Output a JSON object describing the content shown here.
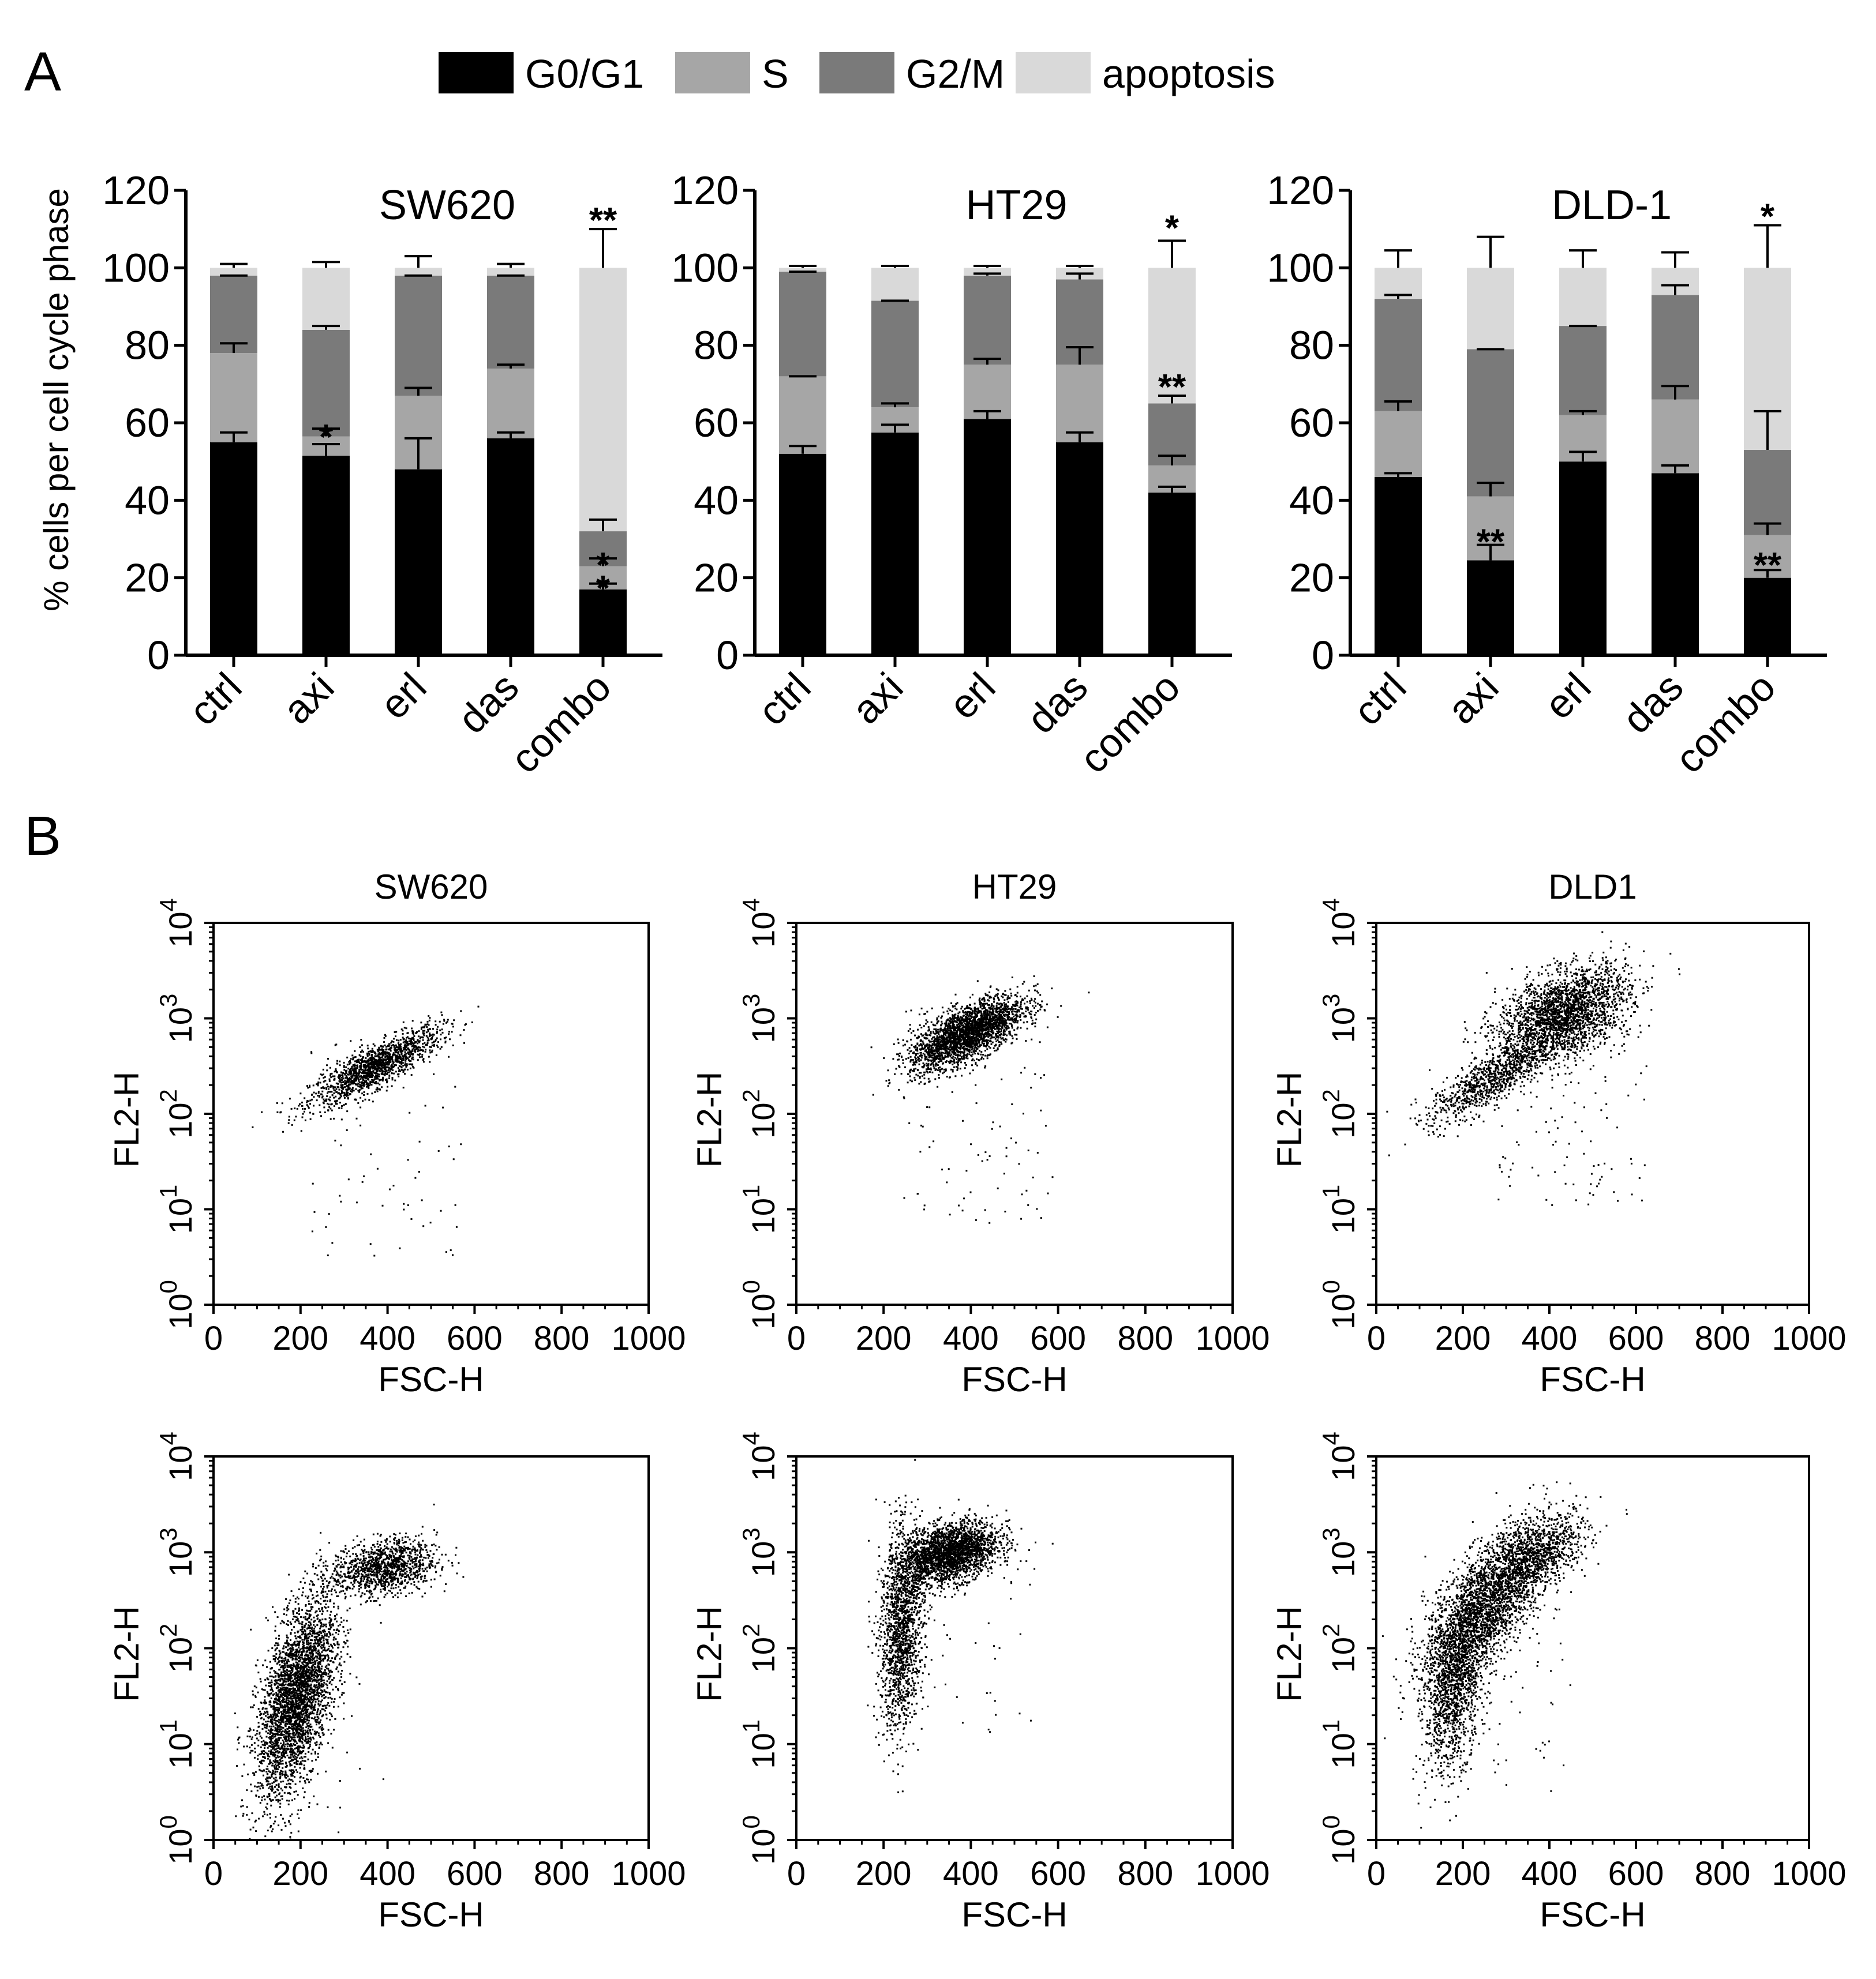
{
  "panel_labels": {
    "a": "A",
    "b": "B"
  },
  "colors": {
    "G0/G1": "#000000",
    "S": "#a6a6a6",
    "G2/M": "#7a7a7a",
    "apoptosis": "#d9d9d9"
  },
  "chart_data": [
    {
      "id": "A-SW620",
      "type": "bar",
      "stacked": true,
      "title": "SW620",
      "ylabel": "% cells per cell cycle phase",
      "ylim": [
        0,
        120
      ],
      "yticks": [
        0,
        20,
        40,
        60,
        80,
        100,
        120
      ],
      "categories": [
        "ctrl",
        "axi",
        "erl",
        "das",
        "combo"
      ],
      "legend": {
        "placement": "top",
        "entries": [
          "G0/G1",
          "S",
          "G2/M",
          "apoptosis"
        ]
      },
      "series": [
        {
          "name": "G0/G1",
          "values": [
            55,
            51.5,
            48,
            56,
            17
          ],
          "errors": [
            2.5,
            3,
            8,
            1.5,
            1.5
          ]
        },
        {
          "name": "S",
          "values": [
            23,
            5,
            19,
            18,
            6
          ],
          "errors": [
            2.5,
            2,
            2,
            1,
            2
          ]
        },
        {
          "name": "G2/M",
          "values": [
            20,
            27.5,
            31,
            24,
            9
          ],
          "errors": [
            0,
            1,
            0,
            0,
            3
          ]
        },
        {
          "name": "apoptosis",
          "values": [
            2,
            16,
            2,
            2,
            68
          ],
          "errors": [
            1,
            1.5,
            3,
            1,
            10
          ]
        }
      ],
      "annotations": [
        {
          "category": "axi",
          "text": "*",
          "at": 57
        },
        {
          "category": "combo",
          "text": "*",
          "at": 24
        },
        {
          "category": "combo",
          "text": "*",
          "at": 18
        },
        {
          "category": "combo",
          "text": "**",
          "at": 113
        }
      ]
    },
    {
      "id": "A-HT29",
      "type": "bar",
      "stacked": true,
      "title": "HT29",
      "ylim": [
        0,
        120
      ],
      "yticks": [
        0,
        20,
        40,
        60,
        80,
        100,
        120
      ],
      "categories": [
        "ctrl",
        "axi",
        "erl",
        "das",
        "combo"
      ],
      "series": [
        {
          "name": "G0/G1",
          "values": [
            52,
            57.5,
            61,
            55,
            42
          ],
          "errors": [
            2,
            2,
            2,
            2.5,
            1.5
          ]
        },
        {
          "name": "S",
          "values": [
            20,
            6.5,
            14,
            20,
            7
          ],
          "errors": [
            0,
            1,
            1.5,
            4.5,
            2.5
          ]
        },
        {
          "name": "G2/M",
          "values": [
            27,
            27.5,
            23,
            22,
            16
          ],
          "errors": [
            0,
            0,
            0.5,
            1.5,
            2
          ]
        },
        {
          "name": "apoptosis",
          "values": [
            1,
            8.5,
            2,
            3,
            35
          ],
          "errors": [
            0.5,
            0.5,
            0.5,
            0.5,
            7
          ]
        }
      ],
      "annotations": [
        {
          "category": "combo",
          "text": "**",
          "at": 70
        },
        {
          "category": "combo",
          "text": "*",
          "at": 111
        }
      ]
    },
    {
      "id": "A-DLD-1",
      "type": "bar",
      "stacked": true,
      "title": "DLD-1",
      "ylim": [
        0,
        120
      ],
      "yticks": [
        0,
        20,
        40,
        60,
        80,
        100,
        120
      ],
      "categories": [
        "ctrl",
        "axi",
        "erl",
        "das",
        "combo"
      ],
      "series": [
        {
          "name": "G0/G1",
          "values": [
            46,
            24.5,
            50,
            47,
            20
          ],
          "errors": [
            1,
            4,
            2.5,
            2,
            2
          ]
        },
        {
          "name": "S",
          "values": [
            17,
            16.5,
            12,
            19,
            11
          ],
          "errors": [
            2.5,
            3.5,
            1,
            3.5,
            3
          ]
        },
        {
          "name": "G2/M",
          "values": [
            29,
            38,
            23,
            27,
            22
          ],
          "errors": [
            1,
            0,
            0,
            2.5,
            10
          ]
        },
        {
          "name": "apoptosis",
          "values": [
            8,
            21,
            15,
            7,
            47
          ],
          "errors": [
            4.5,
            8,
            4.5,
            4,
            11
          ]
        }
      ],
      "annotations": [
        {
          "category": "axi",
          "text": "**",
          "at": 30
        },
        {
          "category": "combo",
          "text": "**",
          "at": 24
        },
        {
          "category": "combo",
          "text": "*",
          "at": 114
        }
      ]
    },
    {
      "id": "B-SW620-ctrl",
      "type": "scatter",
      "title": "SW620",
      "row": "ctrl",
      "xlabel": "FSC-H",
      "ylabel": "FL2-H",
      "xlim": [
        0,
        1000
      ],
      "ylim_log10": [
        0,
        4
      ],
      "xticks": [
        0,
        200,
        400,
        600,
        800,
        1000
      ],
      "yticks_exp": [
        0,
        1,
        2,
        3,
        4
      ],
      "ytick_base": "10",
      "clusters": [
        {
          "cx": 370,
          "cy": 2.5,
          "sx": 75,
          "sy": 0.11,
          "n": 1500,
          "slope": 0.0023
        }
      ],
      "outliers": 80
    },
    {
      "id": "B-HT29-ctrl",
      "type": "scatter",
      "title": "HT29",
      "row": "ctrl",
      "xlabel": "FSC-H",
      "ylabel": "FL2-H",
      "xlim": [
        0,
        1000
      ],
      "ylim_log10": [
        0,
        4
      ],
      "xticks": [
        0,
        200,
        400,
        600,
        800,
        1000
      ],
      "yticks_exp": [
        0,
        1,
        2,
        3,
        4
      ],
      "ytick_base": "10",
      "clusters": [
        {
          "cx": 390,
          "cy": 2.85,
          "sx": 65,
          "sy": 0.14,
          "n": 2600,
          "slope": 0.002
        }
      ],
      "outliers": 110
    },
    {
      "id": "B-DLD1-ctrl",
      "type": "scatter",
      "title": "DLD1",
      "row": "ctrl",
      "xlabel": "FSC-H",
      "ylabel": "FL2-H",
      "xlim": [
        0,
        1000
      ],
      "ylim_log10": [
        0,
        4
      ],
      "xticks": [
        0,
        200,
        400,
        600,
        800,
        1000
      ],
      "yticks_exp": [
        0,
        1,
        2,
        3,
        4
      ],
      "ytick_base": "10",
      "clusters": [
        {
          "cx": 430,
          "cy": 3.05,
          "sx": 75,
          "sy": 0.22,
          "n": 2400,
          "slope": 0.0015
        },
        {
          "cx": 260,
          "cy": 2.35,
          "sx": 70,
          "sy": 0.13,
          "n": 900,
          "slope": 0.0025
        }
      ],
      "outliers": 140
    },
    {
      "id": "B-SW620-combo",
      "type": "scatter",
      "title": "",
      "row": "combo",
      "xlabel": "FSC-H",
      "ylabel": "FL2-H",
      "xlim": [
        0,
        1000
      ],
      "ylim_log10": [
        0,
        4
      ],
      "xticks": [
        0,
        200,
        400,
        600,
        800,
        1000
      ],
      "yticks_exp": [
        0,
        1,
        2,
        3,
        4
      ],
      "ytick_base": "10",
      "clusters": [
        {
          "cx": 190,
          "cy": 1.5,
          "sx": 45,
          "sy": 0.42,
          "n": 3400,
          "slope": 0.006
        },
        {
          "cx": 390,
          "cy": 2.85,
          "sx": 60,
          "sy": 0.14,
          "n": 1200,
          "slope": 0.0005
        }
      ],
      "outliers": 60
    },
    {
      "id": "B-HT29-combo",
      "type": "scatter",
      "title": "",
      "row": "combo",
      "xlabel": "FSC-H",
      "ylabel": "FL2-H",
      "xlim": [
        0,
        1000
      ],
      "ylim_log10": [
        0,
        4
      ],
      "xticks": [
        0,
        200,
        400,
        600,
        800,
        1000
      ],
      "yticks_exp": [
        0,
        1,
        2,
        3,
        4
      ],
      "ytick_base": "10",
      "clusters": [
        {
          "cx": 350,
          "cy": 3.0,
          "sx": 55,
          "sy": 0.15,
          "n": 2400,
          "slope": 0.001
        },
        {
          "cx": 240,
          "cy": 2.2,
          "sx": 25,
          "sy": 0.5,
          "n": 1600,
          "slope": 0.004
        }
      ],
      "outliers": 60
    },
    {
      "id": "B-DLD1-combo",
      "type": "scatter",
      "title": "",
      "row": "combo",
      "xlabel": "FSC-H",
      "ylabel": "FL2-H",
      "xlim": [
        0,
        1000
      ],
      "ylim_log10": [
        0,
        4
      ],
      "xticks": [
        0,
        200,
        400,
        600,
        800,
        1000
      ],
      "yticks_exp": [
        0,
        1,
        2,
        3,
        4
      ],
      "ytick_base": "10",
      "clusters": [
        {
          "cx": 250,
          "cy": 2.45,
          "sx": 70,
          "sy": 0.3,
          "n": 2600,
          "slope": 0.004
        },
        {
          "cx": 180,
          "cy": 1.6,
          "sx": 35,
          "sy": 0.4,
          "n": 1300,
          "slope": 0.005
        },
        {
          "cx": 380,
          "cy": 3.0,
          "sx": 55,
          "sy": 0.18,
          "n": 800,
          "slope": 0.002
        }
      ],
      "outliers": 80
    }
  ]
}
